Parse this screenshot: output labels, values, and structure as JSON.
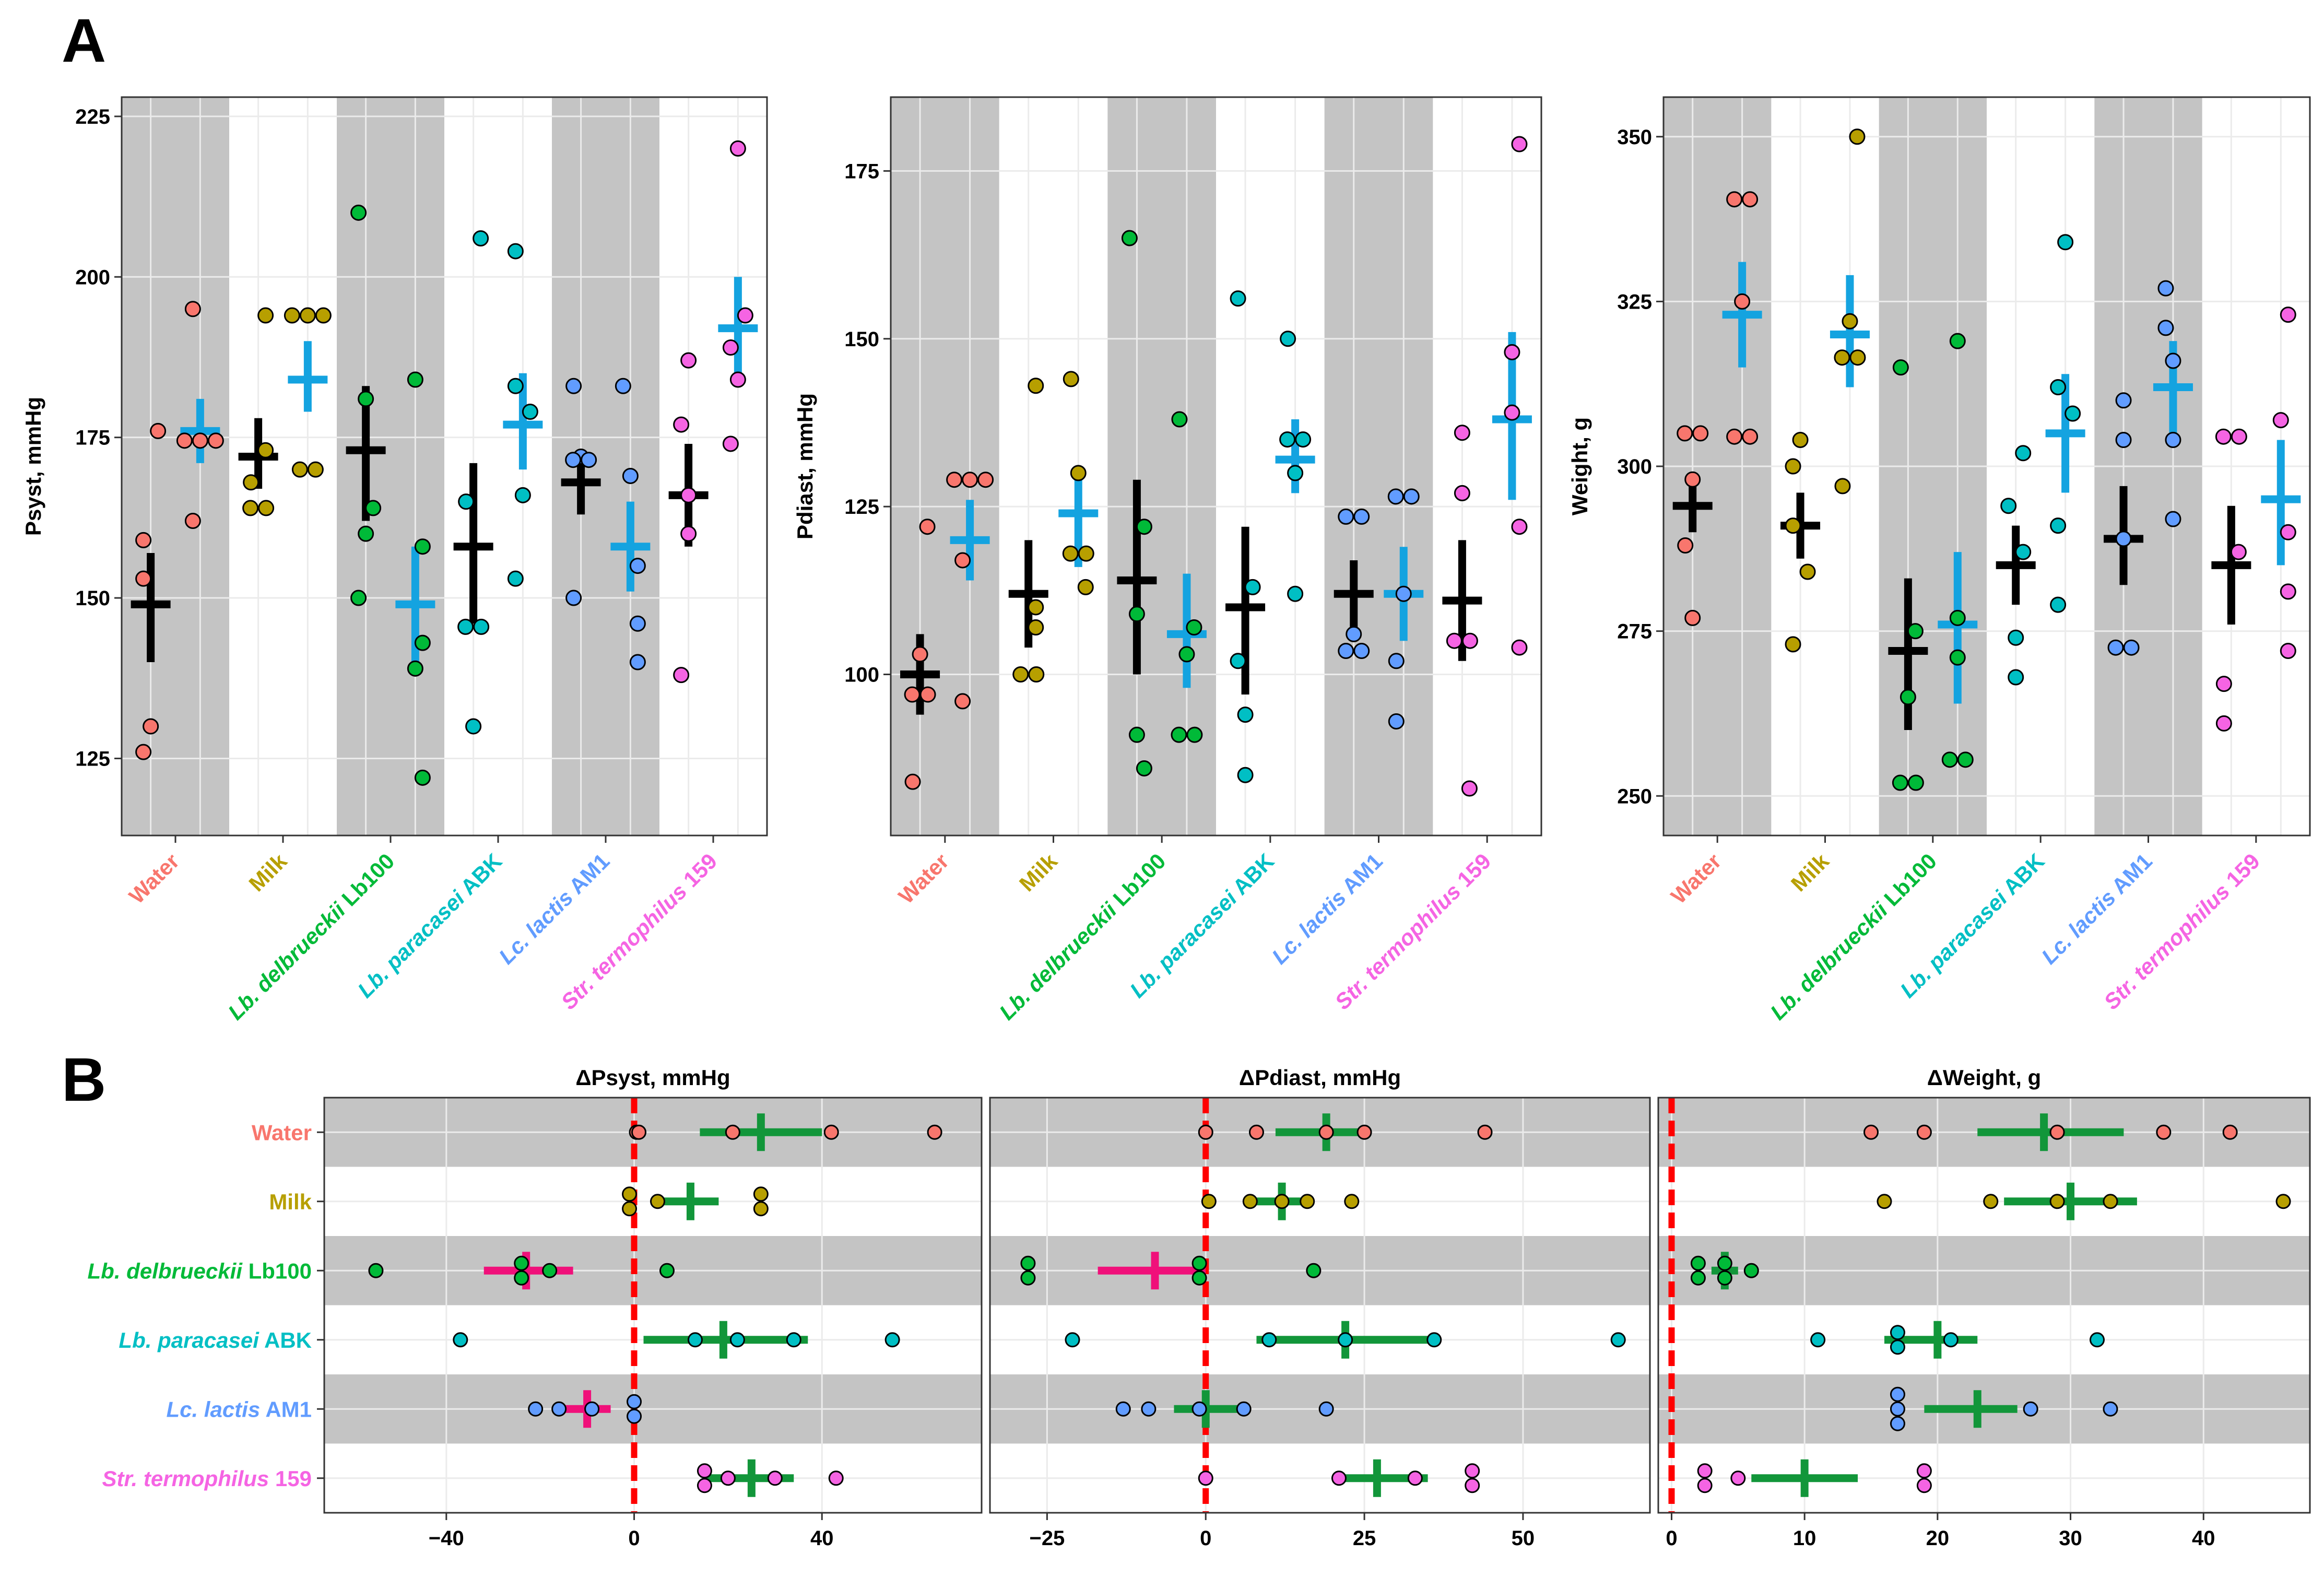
{
  "colors": {
    "panel_bg": "#ffffff",
    "band": "#c4c4c4",
    "grid_white": "#ebebeb",
    "black": "#000000",
    "blue": "#14a3e0",
    "green": "#12963a",
    "pink": "#f0107a",
    "red_dash": "#ff0000",
    "text": "#000000",
    "groups": [
      "#f8766d",
      "#b79f00",
      "#00ba38",
      "#00bfc4",
      "#619cff",
      "#f564e3"
    ]
  },
  "labels": {
    "panel_A": "A",
    "panel_B": "B"
  },
  "groups": [
    {
      "italic": "",
      "plain": "Water"
    },
    {
      "italic": "",
      "plain": "Milk"
    },
    {
      "italic": "Lb. delbrueckii",
      "plain": " Lb100"
    },
    {
      "italic": "Lb. paracasei",
      "plain": " ABK"
    },
    {
      "italic": "Lc. lactis",
      "plain": " AM1"
    },
    {
      "italic": "Str. termophilus",
      "plain": " 159"
    }
  ],
  "chart_data": [
    {
      "id": "A1",
      "type": "scatter",
      "ylabel": "Psyst, mmHg",
      "ylim": [
        113,
        228
      ],
      "yticks": [
        125,
        150,
        175,
        200,
        225
      ],
      "summary": [
        {
          "before": {
            "mean": 149,
            "lo": 140,
            "hi": 157
          },
          "after": {
            "mean": 176,
            "lo": 171,
            "hi": 181
          }
        },
        {
          "before": {
            "mean": 172,
            "lo": 167,
            "hi": 178
          },
          "after": {
            "mean": 184,
            "lo": 179,
            "hi": 190
          }
        },
        {
          "before": {
            "mean": 173,
            "lo": 162,
            "hi": 183
          },
          "after": {
            "mean": 149,
            "lo": 140,
            "hi": 158
          }
        },
        {
          "before": {
            "mean": 158,
            "lo": 146,
            "hi": 171
          },
          "after": {
            "mean": 177,
            "lo": 170,
            "hi": 185
          }
        },
        {
          "before": {
            "mean": 168,
            "lo": 163,
            "hi": 173
          },
          "after": {
            "mean": 158,
            "lo": 151,
            "hi": 165
          }
        },
        {
          "before": {
            "mean": 166,
            "lo": 158,
            "hi": 174
          },
          "after": {
            "mean": 192,
            "lo": 185,
            "hi": 200
          }
        }
      ],
      "points": [
        {
          "before": [
            176,
            159,
            153,
            130,
            126
          ],
          "after": [
            195,
            174.5,
            174.5,
            174.5,
            162
          ]
        },
        {
          "before": [
            194,
            173,
            168,
            164,
            164
          ],
          "after": [
            194,
            194,
            194,
            170,
            170
          ]
        },
        {
          "before": [
            210,
            181,
            164,
            160,
            150
          ],
          "after": [
            184,
            158,
            143,
            139,
            122
          ]
        },
        {
          "before": [
            206,
            165,
            145.5,
            145.5,
            130
          ],
          "after": [
            204,
            183,
            179,
            166,
            153
          ]
        },
        {
          "before": [
            183,
            172,
            171.5,
            171.5,
            150
          ],
          "after": [
            183,
            169,
            155,
            146,
            140
          ]
        },
        {
          "before": [
            187,
            177,
            166,
            160,
            138
          ],
          "after": [
            220,
            194,
            189,
            184,
            174
          ]
        }
      ]
    },
    {
      "id": "A2",
      "type": "scatter",
      "ylabel": "Pdiast, mmHg",
      "ylim": [
        76,
        186
      ],
      "yticks": [
        100,
        125,
        150,
        175
      ],
      "summary": [
        {
          "before": {
            "mean": 100,
            "lo": 94,
            "hi": 106
          },
          "after": {
            "mean": 120,
            "lo": 114,
            "hi": 126
          }
        },
        {
          "before": {
            "mean": 112,
            "lo": 104,
            "hi": 120
          },
          "after": {
            "mean": 124,
            "lo": 116,
            "hi": 131
          }
        },
        {
          "before": {
            "mean": 114,
            "lo": 100,
            "hi": 129
          },
          "after": {
            "mean": 106,
            "lo": 98,
            "hi": 115
          }
        },
        {
          "before": {
            "mean": 110,
            "lo": 97,
            "hi": 122
          },
          "after": {
            "mean": 132,
            "lo": 127,
            "hi": 138
          }
        },
        {
          "before": {
            "mean": 112,
            "lo": 107,
            "hi": 117
          },
          "after": {
            "mean": 112,
            "lo": 105,
            "hi": 119
          }
        },
        {
          "before": {
            "mean": 111,
            "lo": 102,
            "hi": 120
          },
          "after": {
            "mean": 138,
            "lo": 126,
            "hi": 151
          }
        }
      ],
      "points": [
        {
          "before": [
            122,
            103,
            97,
            97,
            84
          ],
          "after": [
            129,
            129,
            129,
            117,
            96
          ]
        },
        {
          "before": [
            143,
            110,
            107,
            100,
            100
          ],
          "after": [
            144,
            130,
            118,
            118,
            113
          ]
        },
        {
          "before": [
            165,
            122,
            109,
            91,
            86
          ],
          "after": [
            138,
            107,
            103,
            91,
            91
          ]
        },
        {
          "before": [
            156,
            113,
            102,
            94,
            85
          ],
          "after": [
            150,
            135,
            135,
            130,
            112
          ]
        },
        {
          "before": [
            123.5,
            123.5,
            106,
            103.5,
            103.5
          ],
          "after": [
            126.5,
            126.5,
            112,
            102,
            93
          ]
        },
        {
          "before": [
            136,
            127,
            105,
            105,
            83
          ],
          "after": [
            179,
            148,
            139,
            122,
            104
          ]
        }
      ]
    },
    {
      "id": "A3",
      "type": "scatter",
      "ylabel": "Weight, g",
      "ylim": [
        244,
        356
      ],
      "yticks": [
        250,
        275,
        300,
        325,
        350
      ],
      "summary": [
        {
          "before": {
            "mean": 294,
            "lo": 290,
            "hi": 299
          },
          "after": {
            "mean": 323,
            "lo": 315,
            "hi": 331
          }
        },
        {
          "before": {
            "mean": 291,
            "lo": 286,
            "hi": 296
          },
          "after": {
            "mean": 320,
            "lo": 312,
            "hi": 329
          }
        },
        {
          "before": {
            "mean": 272,
            "lo": 260,
            "hi": 283
          },
          "after": {
            "mean": 276,
            "lo": 264,
            "hi": 287
          }
        },
        {
          "before": {
            "mean": 285,
            "lo": 279,
            "hi": 291
          },
          "after": {
            "mean": 305,
            "lo": 296,
            "hi": 314
          }
        },
        {
          "before": {
            "mean": 289,
            "lo": 282,
            "hi": 297
          },
          "after": {
            "mean": 312,
            "lo": 305,
            "hi": 319
          }
        },
        {
          "before": {
            "mean": 285,
            "lo": 276,
            "hi": 294
          },
          "after": {
            "mean": 295,
            "lo": 285,
            "hi": 304
          }
        }
      ],
      "points": [
        {
          "before": [
            305,
            305,
            298,
            288,
            277
          ],
          "after": [
            340.5,
            340.5,
            325,
            304.5,
            304.5
          ]
        },
        {
          "before": [
            304,
            300,
            291,
            284,
            273
          ],
          "after": [
            350,
            322,
            316.5,
            316.5,
            297
          ]
        },
        {
          "before": [
            315,
            275,
            265,
            252,
            252
          ],
          "after": [
            319,
            277,
            271,
            255.5,
            255.5
          ]
        },
        {
          "before": [
            302,
            294,
            287,
            274,
            268
          ],
          "after": [
            334,
            312,
            308,
            291,
            279
          ]
        },
        {
          "before": [
            310,
            304,
            289,
            272.5,
            272.5
          ],
          "after": [
            327,
            321,
            316,
            304,
            292
          ]
        },
        {
          "before": [
            304.5,
            304.5,
            287,
            267,
            261
          ],
          "after": [
            323,
            307,
            290,
            281,
            272
          ]
        }
      ]
    },
    {
      "id": "B1",
      "type": "scatter",
      "title": "ΔPsyst, mmHg",
      "xlim": [
        -66,
        74
      ],
      "xticks": [
        -40,
        0,
        40
      ],
      "summary": [
        {
          "mean": 27,
          "lo": 14,
          "hi": 40
        },
        {
          "mean": 12,
          "lo": 5,
          "hi": 18
        },
        {
          "mean": -23,
          "lo": -32,
          "hi": -13
        },
        {
          "mean": 19,
          "lo": 2,
          "hi": 37
        },
        {
          "mean": -10,
          "lo": -15,
          "hi": -5
        },
        {
          "mean": 25,
          "lo": 15,
          "hi": 34
        }
      ],
      "points": [
        [
          0.5,
          1,
          21,
          42,
          64
        ],
        [
          -1,
          -1,
          5,
          27,
          27
        ],
        [
          -55,
          -24,
          -24,
          -18,
          7
        ],
        [
          -37,
          13,
          22,
          34,
          55
        ],
        [
          -21,
          -16,
          -9,
          0,
          0
        ],
        [
          15,
          15,
          20,
          30,
          43
        ]
      ]
    },
    {
      "id": "B2",
      "type": "scatter",
      "title": "ΔPdiast, mmHg",
      "xlim": [
        -34,
        70
      ],
      "xticks": [
        -25,
        0,
        25,
        50
      ],
      "summary": [
        {
          "mean": 19,
          "lo": 11,
          "hi": 26
        },
        {
          "mean": 12,
          "lo": 7,
          "hi": 17
        },
        {
          "mean": -8,
          "lo": -17,
          "hi": 0
        },
        {
          "mean": 22,
          "lo": 8,
          "hi": 36
        },
        {
          "mean": 0,
          "lo": -5,
          "hi": 5
        },
        {
          "mean": 27,
          "lo": 20,
          "hi": 35
        }
      ],
      "points": [
        [
          0,
          8,
          19,
          25,
          44
        ],
        [
          0.5,
          7,
          12,
          16,
          23
        ],
        [
          -28,
          -28,
          -1,
          -1,
          17
        ],
        [
          -21,
          10,
          22,
          36,
          65
        ],
        [
          -13,
          -9,
          -1,
          6,
          19
        ],
        [
          0,
          21,
          33,
          42,
          42
        ]
      ]
    },
    {
      "id": "B3",
      "type": "scatter",
      "title": "ΔWeight, g",
      "xlim": [
        -1,
        48
      ],
      "xticks": [
        0,
        10,
        20,
        30,
        40
      ],
      "summary": [
        {
          "mean": 28,
          "lo": 23,
          "hi": 34
        },
        {
          "mean": 30,
          "lo": 25,
          "hi": 35
        },
        {
          "mean": 4,
          "lo": 3,
          "hi": 5
        },
        {
          "mean": 20,
          "lo": 16,
          "hi": 23
        },
        {
          "mean": 23,
          "lo": 19,
          "hi": 26
        },
        {
          "mean": 10,
          "lo": 6,
          "hi": 14
        }
      ],
      "points": [
        [
          15,
          19,
          29,
          37,
          42
        ],
        [
          16,
          24,
          29,
          33,
          46
        ],
        [
          2,
          2,
          4,
          4,
          6
        ],
        [
          11,
          17,
          17,
          21,
          32
        ],
        [
          17,
          17,
          17,
          27,
          33
        ],
        [
          2.5,
          2.5,
          5,
          19,
          19
        ]
      ]
    }
  ]
}
